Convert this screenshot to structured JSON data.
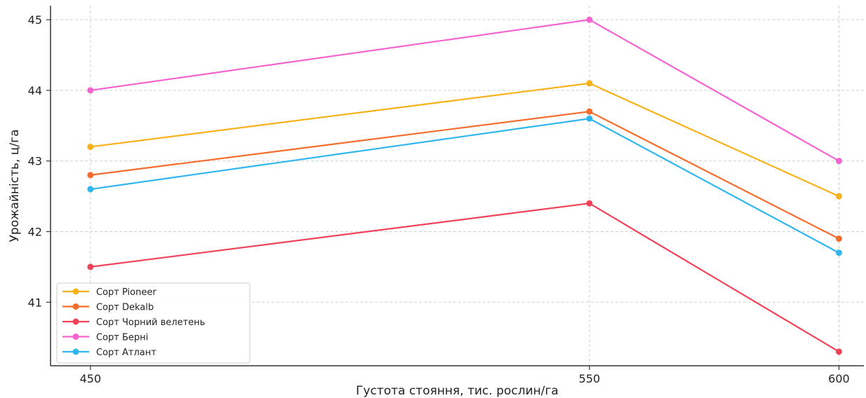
{
  "chart_data": {
    "type": "line",
    "title": "",
    "xlabel": "Густота стояння, тис. рослин/га",
    "ylabel": "Урожайність, ц/га",
    "x": [
      450,
      550,
      600
    ],
    "xlim": [
      442,
      605
    ],
    "ylim": [
      40.1,
      45.2
    ],
    "yticks": [
      41,
      42,
      43,
      44,
      45
    ],
    "grid": true,
    "legend_position": "bottom-left",
    "series": [
      {
        "name": "Сорт Pioneer",
        "color": "#F7B21B",
        "values": [
          43.2,
          44.1,
          42.5
        ]
      },
      {
        "name": "Сорт Dekalb",
        "color": "#F46D2D",
        "values": [
          42.8,
          43.7,
          41.9
        ]
      },
      {
        "name": "Сорт Чорний велетень",
        "color": "#F0435A",
        "values": [
          41.5,
          42.4,
          40.3
        ]
      },
      {
        "name": "Сорт Берні",
        "color": "#F463CF",
        "values": [
          44.0,
          45.0,
          43.0
        ]
      },
      {
        "name": "Сорт Атлант",
        "color": "#2FB6EE",
        "values": [
          42.6,
          43.6,
          41.7
        ]
      }
    ]
  }
}
